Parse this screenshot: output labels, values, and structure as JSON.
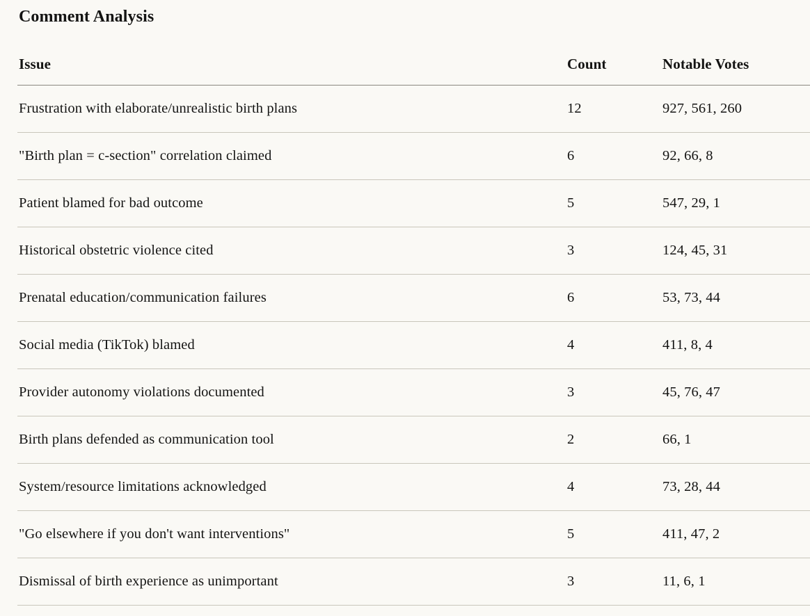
{
  "title": "Comment Analysis",
  "table": {
    "columns": [
      "Issue",
      "Count",
      "Notable Votes"
    ],
    "rows": [
      {
        "issue": "Frustration with elaborate/unrealistic birth plans",
        "count": "12",
        "votes": "927, 561, 260"
      },
      {
        "issue": "\"Birth plan = c-section\" correlation claimed",
        "count": "6",
        "votes": "92, 66, 8"
      },
      {
        "issue": "Patient blamed for bad outcome",
        "count": "5",
        "votes": "547, 29, 1"
      },
      {
        "issue": "Historical obstetric violence cited",
        "count": "3",
        "votes": "124, 45, 31"
      },
      {
        "issue": "Prenatal education/communication failures",
        "count": "6",
        "votes": "53, 73, 44"
      },
      {
        "issue": "Social media (TikTok) blamed",
        "count": "4",
        "votes": "411, 8, 4"
      },
      {
        "issue": "Provider autonomy violations documented",
        "count": "3",
        "votes": "45, 76, 47"
      },
      {
        "issue": "Birth plans defended as communication tool",
        "count": "2",
        "votes": "66, 1"
      },
      {
        "issue": "System/resource limitations acknowledged",
        "count": "4",
        "votes": "73, 28, 44"
      },
      {
        "issue": "\"Go elsewhere if you don't want interventions\"",
        "count": "5",
        "votes": "411, 47, 2"
      },
      {
        "issue": "Dismissal of birth experience as unimportant",
        "count": "3",
        "votes": "11, 6, 1"
      }
    ]
  },
  "colors": {
    "background": "#FAF9F5",
    "text": "#141413",
    "header_rule": "#8a887f",
    "row_rule": "#c9c6bb"
  }
}
